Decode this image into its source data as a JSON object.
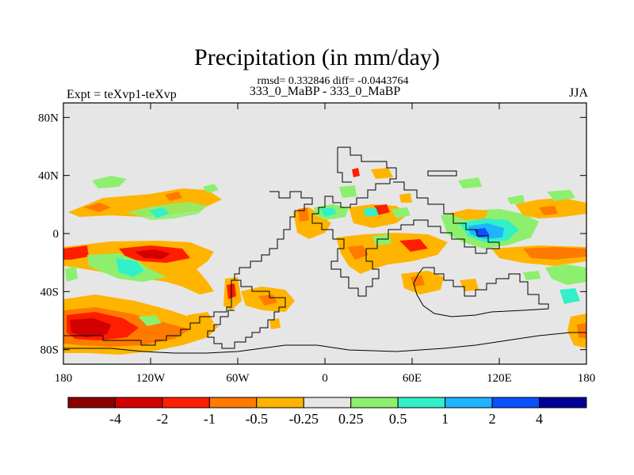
{
  "header": {
    "title": "Precipitation (in mm/day)",
    "stats": "rmsd= 0.332846 diff= -0.0443764",
    "subtitle": "333_0_MaBP - 333_0_MaBP",
    "expt": "Expt = teXvp1-teXvp",
    "season": "JJA"
  },
  "axes": {
    "lat_ticks": [
      {
        "value": 80,
        "label": "80N"
      },
      {
        "value": 40,
        "label": "40N"
      },
      {
        "value": 0,
        "label": "0"
      },
      {
        "value": -40,
        "label": "40S"
      },
      {
        "value": -80,
        "label": "80S"
      }
    ],
    "lon_ticks": [
      {
        "value": -180,
        "label": "180"
      },
      {
        "value": -120,
        "label": "120W"
      },
      {
        "value": -60,
        "label": "60W"
      },
      {
        "value": 0,
        "label": "0"
      },
      {
        "value": 60,
        "label": "60E"
      },
      {
        "value": 120,
        "label": "120E"
      },
      {
        "value": 180,
        "label": "180"
      }
    ],
    "lat_range": [
      -90,
      90
    ],
    "lon_range": [
      -180,
      180
    ]
  },
  "colorbar": {
    "colors": [
      "#8c0000",
      "#d20000",
      "#ff1e00",
      "#ff7a00",
      "#ffb400",
      "#e6e6e6",
      "#8cf06e",
      "#32f0c8",
      "#1eb4ff",
      "#0a50ff",
      "#000096"
    ],
    "labels": [
      "-4",
      "-2",
      "-1",
      "-0.5",
      "-0.25",
      "0.25",
      "0.5",
      "1",
      "2",
      "4"
    ]
  },
  "colors": {
    "background": "#e6e6e6",
    "outline": "#000000"
  }
}
